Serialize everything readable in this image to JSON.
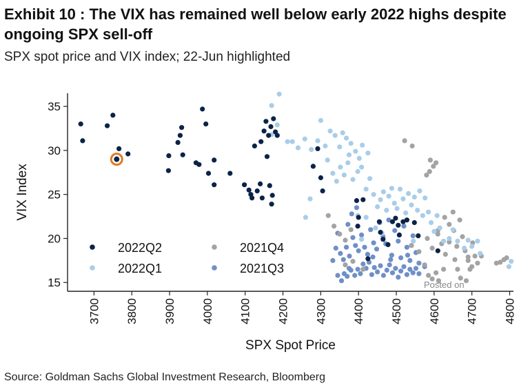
{
  "header": {
    "title": "Exhibit 10 : The VIX has remained well below early 2022 highs despite ongoing SPX sell-off",
    "subtitle": "SPX spot price and VIX index; 22-Jun highlighted"
  },
  "footer": {
    "source": "Source: Goldman Sachs Global Investment Research, Bloomberg"
  },
  "watermark": "Posted on",
  "colors": {
    "2022Q2": "#0b2348",
    "2022Q1": "#a9cde9",
    "2021Q4": "#a3a3a3",
    "2021Q3": "#6f8fc7",
    "highlight": "#e07a22"
  },
  "chart_data": {
    "type": "scatter",
    "title": "",
    "xlabel": "SPX Spot Price",
    "ylabel": "VIX Index",
    "xlim": [
      3630,
      4810
    ],
    "ylim": [
      14,
      36.5
    ],
    "xticks": [
      3700,
      3800,
      3900,
      4000,
      4100,
      4200,
      4300,
      4400,
      4500,
      4600,
      4700,
      4800
    ],
    "yticks": [
      15,
      20,
      25,
      30,
      35
    ],
    "grid": false,
    "legend": [
      {
        "name": "2022Q2",
        "row": 0,
        "col": 0
      },
      {
        "name": "2021Q4",
        "row": 0,
        "col": 1
      },
      {
        "name": "2022Q1",
        "row": 1,
        "col": 0
      },
      {
        "name": "2021Q3",
        "row": 1,
        "col": 1
      }
    ],
    "highlight": {
      "label": "22-Jun",
      "x": 3760,
      "y": 29.0
    },
    "series": [
      {
        "name": "2021Q3",
        "points": [
          [
            4355,
            15.2
          ],
          [
            4362,
            16.0
          ],
          [
            4370,
            15.7
          ],
          [
            4380,
            16.4
          ],
          [
            4390,
            15.8
          ],
          [
            4398,
            16.5
          ],
          [
            4405,
            16.0
          ],
          [
            4412,
            17.1
          ],
          [
            4420,
            16.6
          ],
          [
            4428,
            17.3
          ],
          [
            4435,
            15.9
          ],
          [
            4442,
            16.7
          ],
          [
            4450,
            16.2
          ],
          [
            4458,
            16.9
          ],
          [
            4466,
            15.8
          ],
          [
            4475,
            16.4
          ],
          [
            4482,
            17.0
          ],
          [
            4490,
            16.1
          ],
          [
            4498,
            16.6
          ],
          [
            4505,
            15.6
          ],
          [
            4512,
            16.3
          ],
          [
            4520,
            16.8
          ],
          [
            4528,
            15.9
          ],
          [
            4536,
            16.5
          ],
          [
            4544,
            16.1
          ],
          [
            4552,
            16.6
          ],
          [
            4560,
            16.0
          ],
          [
            4352,
            18.3
          ],
          [
            4360,
            17.6
          ],
          [
            4368,
            19.0
          ],
          [
            4376,
            18.0
          ],
          [
            4385,
            20.1
          ],
          [
            4392,
            19.2
          ],
          [
            4400,
            18.6
          ],
          [
            4408,
            20.4
          ],
          [
            4416,
            19.0
          ],
          [
            4424,
            18.2
          ],
          [
            4432,
            21.0
          ],
          [
            4440,
            19.5
          ],
          [
            4448,
            18.8
          ],
          [
            4456,
            21.8
          ],
          [
            4465,
            20.2
          ],
          [
            4472,
            19.4
          ],
          [
            4480,
            22.1
          ],
          [
            4488,
            18.1
          ],
          [
            4496,
            20.9
          ],
          [
            4505,
            19.7
          ],
          [
            4512,
            17.8
          ],
          [
            4520,
            21.4
          ],
          [
            4528,
            19.0
          ],
          [
            4536,
            17.5
          ],
          [
            4544,
            20.3
          ],
          [
            4552,
            18.4
          ],
          [
            4560,
            17.2
          ],
          [
            4340,
            18.9
          ],
          [
            4345,
            20.6
          ],
          [
            4332,
            17.5
          ],
          [
            4375,
            16.6
          ],
          [
            4438,
            17.9
          ],
          [
            4485,
            17.6
          ],
          [
            4530,
            18.1
          ],
          [
            4575,
            16.8
          ],
          [
            4382,
            22.8
          ],
          [
            4395,
            23.5
          ],
          [
            4372,
            21.6
          ],
          [
            4345,
            15.8
          ]
        ]
      },
      {
        "name": "2021Q4",
        "points": [
          [
            4320,
            22.6
          ],
          [
            4335,
            21.4
          ],
          [
            4350,
            20.5
          ],
          [
            4365,
            19.8
          ],
          [
            4380,
            21.0
          ],
          [
            4365,
            17.0
          ],
          [
            4385,
            17.4
          ],
          [
            4412,
            16.5
          ],
          [
            4540,
            19.2
          ],
          [
            4560,
            18.5
          ],
          [
            4575,
            17.0
          ],
          [
            4585,
            15.8
          ],
          [
            4595,
            15.4
          ],
          [
            4605,
            16.1
          ],
          [
            4612,
            15.2
          ],
          [
            4625,
            16.5
          ],
          [
            4610,
            20.5
          ],
          [
            4620,
            19.4
          ],
          [
            4630,
            18.2
          ],
          [
            4640,
            19.6
          ],
          [
            4652,
            20.9
          ],
          [
            4660,
            19.1
          ],
          [
            4668,
            22.1
          ],
          [
            4675,
            20.2
          ],
          [
            4682,
            18.6
          ],
          [
            4690,
            17.5
          ],
          [
            4695,
            16.5
          ],
          [
            4702,
            19.5
          ],
          [
            4708,
            18.0
          ],
          [
            4715,
            17.2
          ],
          [
            4650,
            23.0
          ],
          [
            4640,
            21.6
          ],
          [
            4628,
            22.4
          ],
          [
            4655,
            17.6
          ],
          [
            4662,
            16.5
          ],
          [
            4670,
            15.5
          ],
          [
            4685,
            15.2
          ],
          [
            4690,
            17.9
          ],
          [
            4700,
            16.8
          ],
          [
            4725,
            18.0
          ],
          [
            4765,
            17.2
          ],
          [
            4775,
            17.3
          ],
          [
            4785,
            17.6
          ],
          [
            4792,
            17.8
          ],
          [
            4582,
            20.0
          ],
          [
            4595,
            18.9
          ],
          [
            4522,
            31.1
          ],
          [
            4542,
            30.5
          ],
          [
            4590,
            28.9
          ],
          [
            4598,
            28.2
          ],
          [
            4605,
            28.6
          ],
          [
            4580,
            27.2
          ],
          [
            4588,
            27.6
          ],
          [
            4610,
            20.9
          ]
        ]
      },
      {
        "name": "2022Q1",
        "points": [
          [
            4170,
            35.1
          ],
          [
            4190,
            36.4
          ],
          [
            4170,
            31.8
          ],
          [
            4185,
            32.9
          ],
          [
            4212,
            31.0
          ],
          [
            4225,
            31.0
          ],
          [
            4240,
            30.3
          ],
          [
            4258,
            31.3
          ],
          [
            4275,
            30.1
          ],
          [
            4300,
            33.4
          ],
          [
            4292,
            31.1
          ],
          [
            4312,
            30.5
          ],
          [
            4325,
            32.2
          ],
          [
            4338,
            31.7
          ],
          [
            4350,
            30.4
          ],
          [
            4358,
            32.0
          ],
          [
            4368,
            31.4
          ],
          [
            4375,
            29.5
          ],
          [
            4380,
            30.8
          ],
          [
            4392,
            29.9
          ],
          [
            4402,
            29.1
          ],
          [
            4410,
            30.6
          ],
          [
            4318,
            28.9
          ],
          [
            4332,
            27.4
          ],
          [
            4342,
            26.5
          ],
          [
            4352,
            28.1
          ],
          [
            4362,
            27.2
          ],
          [
            4372,
            28.6
          ],
          [
            4385,
            26.7
          ],
          [
            4398,
            27.6
          ],
          [
            4408,
            28.1
          ],
          [
            4420,
            25.6
          ],
          [
            4430,
            26.8
          ],
          [
            4440,
            25.0
          ],
          [
            4450,
            23.6
          ],
          [
            4458,
            24.4
          ],
          [
            4466,
            25.3
          ],
          [
            4474,
            23.2
          ],
          [
            4480,
            24.8
          ],
          [
            4488,
            25.7
          ],
          [
            4495,
            24.0
          ],
          [
            4502,
            23.4
          ],
          [
            4510,
            25.6
          ],
          [
            4518,
            24.5
          ],
          [
            4525,
            22.9
          ],
          [
            4532,
            25.1
          ],
          [
            4540,
            23.8
          ],
          [
            4548,
            24.7
          ],
          [
            4556,
            23.2
          ],
          [
            4562,
            25.4
          ],
          [
            4570,
            22.6
          ],
          [
            4576,
            24.6
          ],
          [
            4585,
            23.0
          ],
          [
            4592,
            21.8
          ],
          [
            4600,
            20.8
          ],
          [
            4608,
            22.6
          ],
          [
            4615,
            21.2
          ],
          [
            4625,
            19.7
          ],
          [
            4640,
            20.0
          ],
          [
            4650,
            21.0
          ],
          [
            4662,
            19.7
          ],
          [
            4680,
            18.9
          ],
          [
            4690,
            19.8
          ],
          [
            4700,
            19.1
          ],
          [
            4715,
            19.7
          ],
          [
            4722,
            18.3
          ],
          [
            4798,
            16.8
          ],
          [
            4804,
            17.4
          ],
          [
            4462,
            20.6
          ],
          [
            4445,
            21.2
          ],
          [
            4420,
            22.4
          ],
          [
            4398,
            22.6
          ],
          [
            4408,
            19.9
          ],
          [
            4545,
            19.7
          ],
          [
            4425,
            29.7
          ],
          [
            4260,
            22.4
          ],
          [
            4272,
            24.5
          ]
        ]
      },
      {
        "name": "2022Q2",
        "points": [
          [
            3665,
            33.0
          ],
          [
            3670,
            31.1
          ],
          [
            3735,
            32.8
          ],
          [
            3750,
            34.0
          ],
          [
            3766,
            30.2
          ],
          [
            3790,
            29.6
          ],
          [
            3898,
            29.4
          ],
          [
            3897,
            27.7
          ],
          [
            3922,
            30.9
          ],
          [
            3928,
            31.7
          ],
          [
            3932,
            32.6
          ],
          [
            3935,
            29.5
          ],
          [
            3970,
            28.6
          ],
          [
            3978,
            28.4
          ],
          [
            3987,
            34.7
          ],
          [
            3996,
            33.0
          ],
          [
            4003,
            27.4
          ],
          [
            4018,
            28.9
          ],
          [
            4018,
            26.1
          ],
          [
            4060,
            27.4
          ],
          [
            4098,
            26.1
          ],
          [
            4110,
            25.5
          ],
          [
            4115,
            25.0
          ],
          [
            4118,
            24.6
          ],
          [
            4132,
            25.4
          ],
          [
            4140,
            26.2
          ],
          [
            4145,
            24.6
          ],
          [
            4165,
            26.0
          ],
          [
            4170,
            23.9
          ],
          [
            4172,
            24.9
          ],
          [
            4125,
            30.5
          ],
          [
            4142,
            31.0
          ],
          [
            4150,
            32.2
          ],
          [
            4155,
            33.3
          ],
          [
            4158,
            29.3
          ],
          [
            4162,
            31.7
          ],
          [
            4168,
            32.7
          ],
          [
            4175,
            33.6
          ],
          [
            4180,
            32.1
          ],
          [
            4185,
            31.7
          ],
          [
            4280,
            28.2
          ],
          [
            4292,
            30.2
          ],
          [
            4300,
            26.9
          ],
          [
            4305,
            25.4
          ],
          [
            4395,
            24.3
          ],
          [
            4400,
            22.4
          ],
          [
            4412,
            24.4
          ],
          [
            4398,
            21.4
          ],
          [
            4455,
            21.9
          ],
          [
            4458,
            20.7
          ],
          [
            4465,
            19.9
          ],
          [
            4478,
            19.3
          ],
          [
            4490,
            21.9
          ],
          [
            4498,
            22.3
          ],
          [
            4505,
            21.5
          ],
          [
            4508,
            20.4
          ],
          [
            4518,
            21.9
          ],
          [
            4528,
            22.1
          ],
          [
            4548,
            21.8
          ],
          [
            4558,
            20.3
          ],
          [
            4610,
            18.6
          ],
          [
            4425,
            17.7
          ]
        ]
      }
    ]
  }
}
